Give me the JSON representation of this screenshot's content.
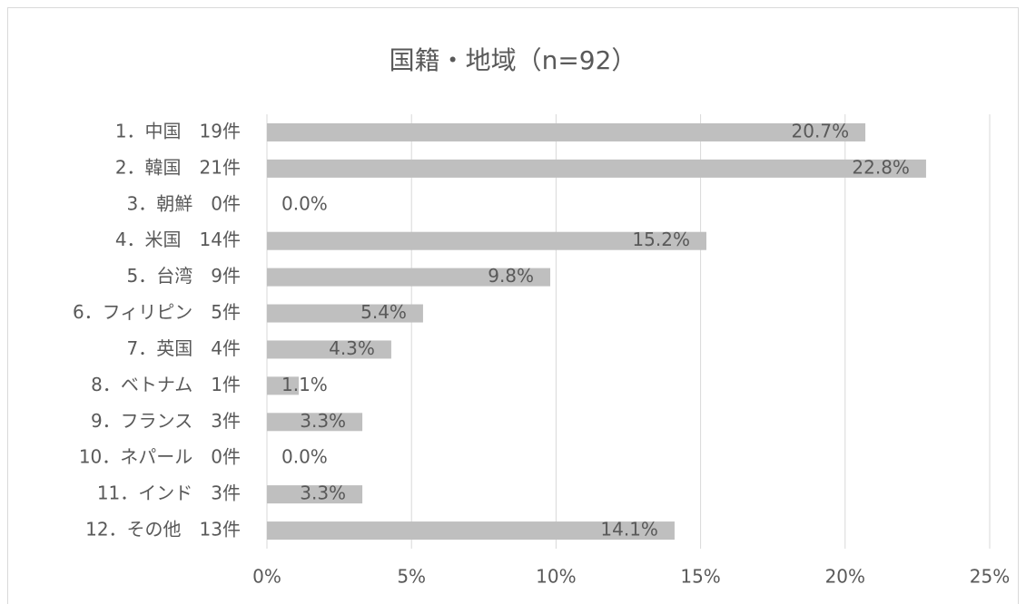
{
  "chart_data": {
    "type": "hbar",
    "title": "国籍・地域（n=92）",
    "categories": [
      "1．中国　19件",
      "2．韓国　21件",
      "3．朝鮮　0件",
      "4．米国　14件",
      "5．台湾　9件",
      "6．フィリピン　5件",
      "7．英国　4件",
      "8．ベトナム　1件",
      "9．フランス　3件",
      "10．ネパール　0件",
      "11．インド　3件",
      "12．その他　13件"
    ],
    "values": [
      20.7,
      22.8,
      0.0,
      15.2,
      9.8,
      5.4,
      4.3,
      1.1,
      3.3,
      0.0,
      3.3,
      14.1
    ],
    "value_labels": [
      "20.7%",
      "22.8%",
      "0.0%",
      "15.2%",
      "9.8%",
      "5.4%",
      "4.3%",
      "1.1%",
      "3.3%",
      "0.0%",
      "3.3%",
      "14.1%"
    ],
    "color": "#bfbfbf",
    "xlim": [
      0,
      25
    ],
    "xticks": [
      {
        "value": 0,
        "label": "0%"
      },
      {
        "value": 5,
        "label": "5%"
      },
      {
        "value": 10,
        "label": "10%"
      },
      {
        "value": 15,
        "label": "15%"
      },
      {
        "value": 20,
        "label": "20%"
      },
      {
        "value": 25,
        "label": "25%"
      }
    ],
    "grid": true
  }
}
